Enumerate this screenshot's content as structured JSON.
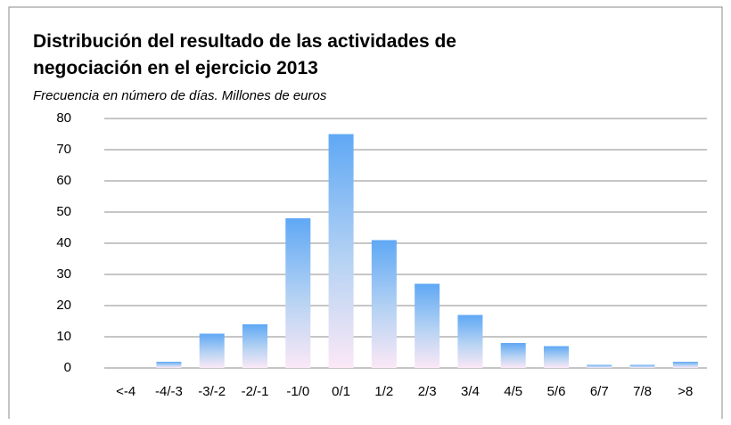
{
  "chart_data": {
    "type": "bar",
    "title": "Distribución del resultado de las actividades de negociación en el ejercicio 2013",
    "subtitle": "Frecuencia en número de días. Millones de euros",
    "categories": [
      "<-4",
      "-4/-3",
      "-3/-2",
      "-2/-1",
      "-1/0",
      "0/1",
      "1/2",
      "2/3",
      "3/4",
      "4/5",
      "5/6",
      "6/7",
      "7/8",
      ">8"
    ],
    "values": [
      0,
      2,
      11,
      14,
      48,
      75,
      41,
      27,
      17,
      8,
      7,
      1,
      1,
      2
    ],
    "color": "#5fa8f5",
    "ylim": [
      0,
      80
    ],
    "yticks": [
      0,
      10,
      20,
      30,
      40,
      50,
      60,
      70,
      80
    ],
    "grid": true
  }
}
